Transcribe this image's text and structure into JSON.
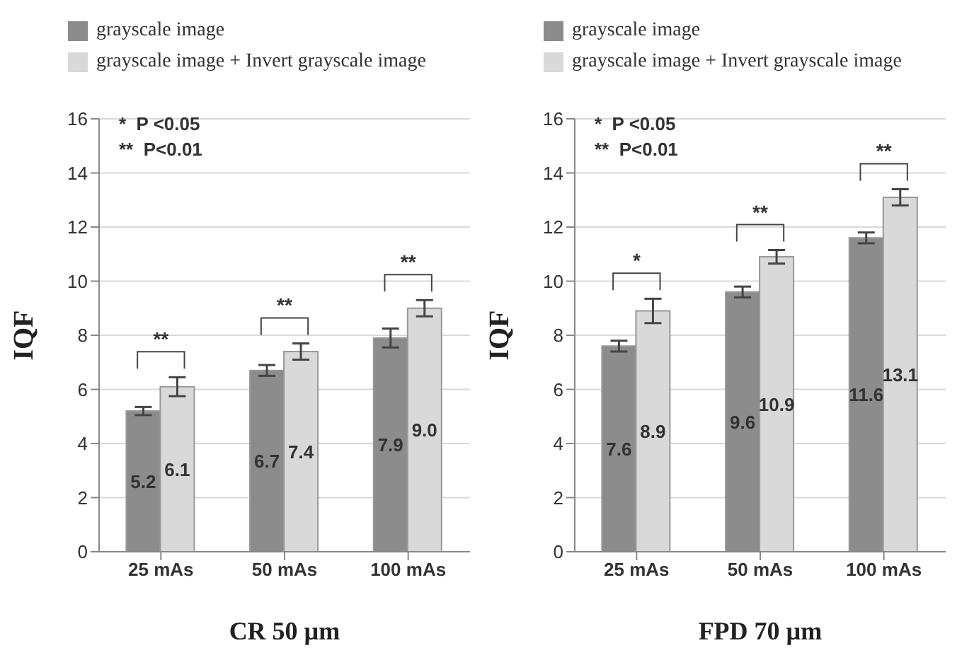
{
  "chart_data": [
    {
      "type": "bar",
      "xlabel": "CR 50 µm",
      "ylabel": "IQF",
      "categories": [
        "25 mAs",
        "50 mAs",
        "100 mAs"
      ],
      "series": [
        {
          "name": "grayscale image",
          "color": "#8c8c8c",
          "values": [
            5.2,
            6.7,
            7.9
          ],
          "errors": [
            0.15,
            0.2,
            0.35
          ],
          "value_labels": [
            "5.2",
            "6.7",
            "7.9"
          ]
        },
        {
          "name": "grayscale image + Invert grayscale image",
          "color": "#d9d9d9",
          "values": [
            6.1,
            7.4,
            9.0
          ],
          "errors": [
            0.35,
            0.3,
            0.3
          ],
          "value_labels": [
            "6.1",
            "7.4",
            "9.0"
          ]
        }
      ],
      "ylim": [
        0,
        16
      ],
      "yticks": [
        0,
        2,
        4,
        6,
        8,
        10,
        12,
        14,
        16
      ],
      "grid": "y",
      "legend": "top left",
      "annotations": [
        "*  P <0.05",
        "**  P<0.01",
        "**",
        "**",
        "**"
      ]
    },
    {
      "type": "bar",
      "xlabel": "FPD 70 µm",
      "ylabel": "IQF",
      "categories": [
        "25 mAs",
        "50 mAs",
        "100 mAs"
      ],
      "series": [
        {
          "name": "grayscale image",
          "color": "#8c8c8c",
          "values": [
            7.6,
            9.6,
            11.6
          ],
          "errors": [
            0.2,
            0.2,
            0.2
          ],
          "value_labels": [
            "7.6",
            "9.6",
            "11.6"
          ]
        },
        {
          "name": "grayscale image + Invert grayscale image",
          "color": "#d9d9d9",
          "values": [
            8.9,
            10.9,
            13.1
          ],
          "errors": [
            0.45,
            0.25,
            0.3
          ],
          "value_labels": [
            "8.9",
            "10.9",
            "13.1"
          ]
        }
      ],
      "ylim": [
        0,
        16
      ],
      "yticks": [
        0,
        2,
        4,
        6,
        8,
        10,
        12,
        14,
        16
      ],
      "grid": "y",
      "legend": "top left",
      "annotations": [
        "*  P <0.05",
        "**  P<0.01",
        "*",
        "**",
        "**"
      ]
    }
  ]
}
